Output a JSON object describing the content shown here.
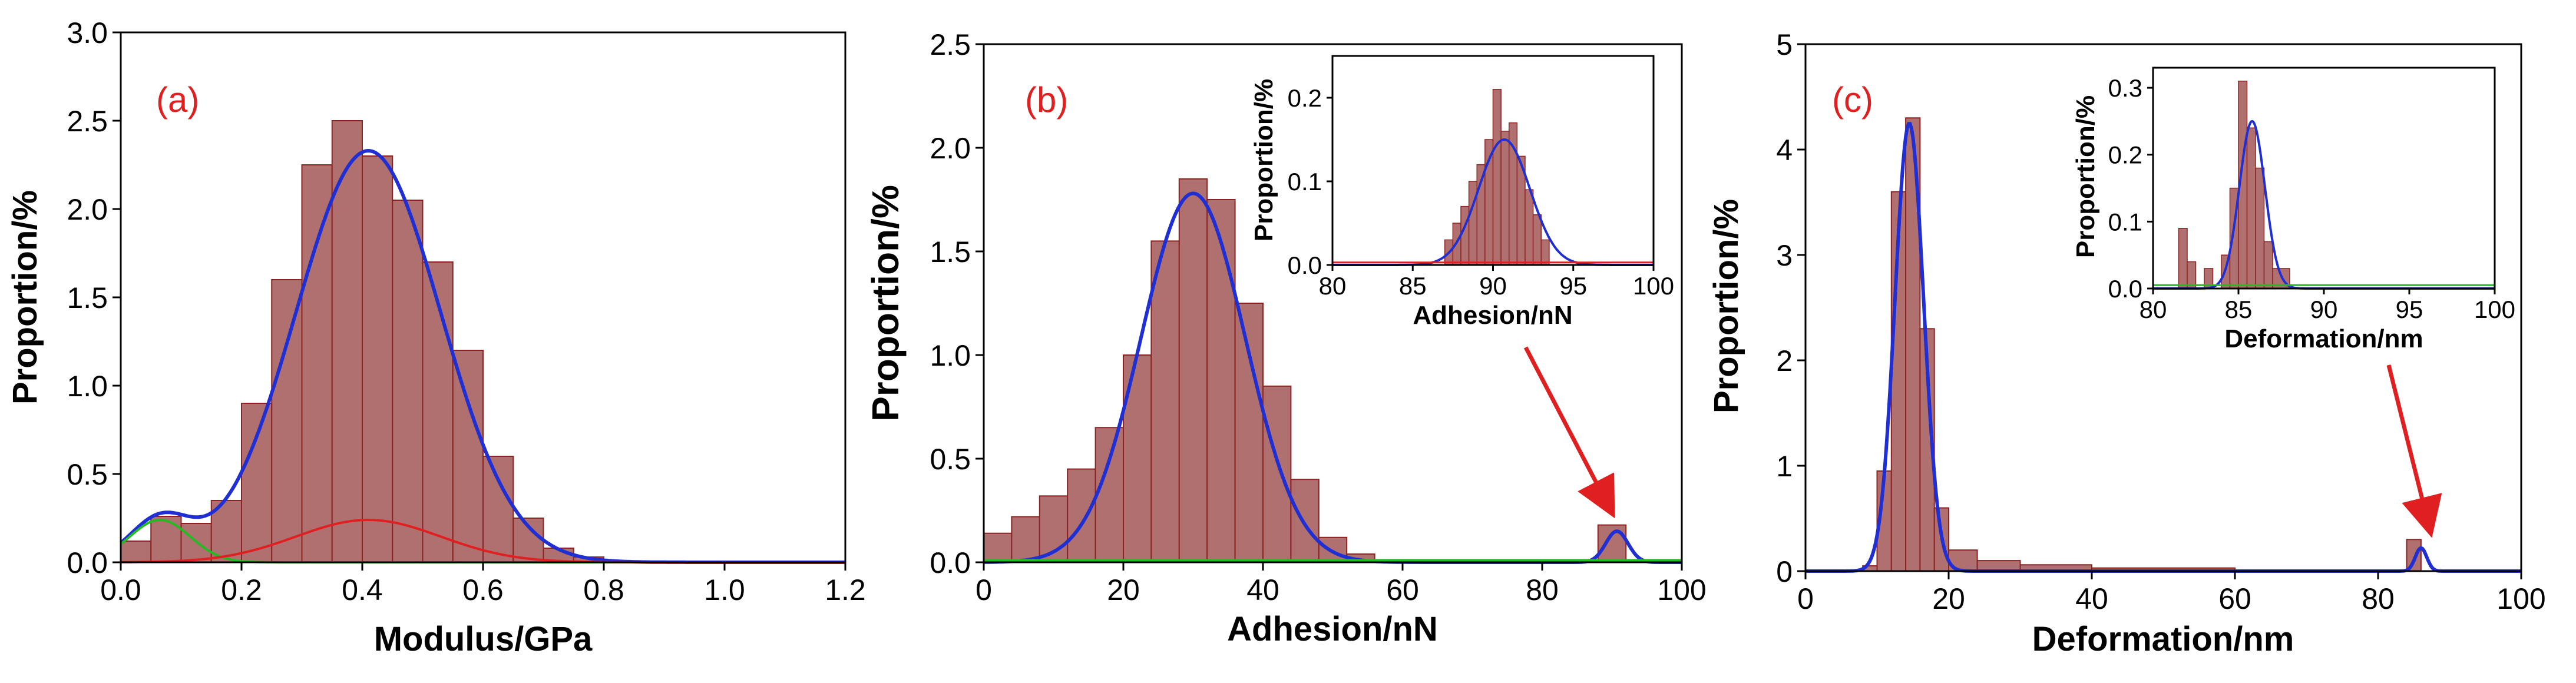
{
  "colors": {
    "bar_fill": "#b07070",
    "bar_stroke": "#8b2323",
    "fit": "#1f2fd4",
    "green": "#22bb22",
    "red": "#e02020",
    "axis": "#000000"
  },
  "chart_data": [
    {
      "id": "a",
      "type": "bar",
      "panel_label": "(a)",
      "xlabel": "Modulus/GPa",
      "ylabel": "Proportion/%",
      "xlim": [
        0,
        1.2
      ],
      "ylim": [
        0,
        3.0
      ],
      "xticks": [
        "0.0",
        "0.2",
        "0.4",
        "0.6",
        "0.8",
        "1.0",
        "1.2"
      ],
      "yticks": [
        "0.0",
        "0.5",
        "1.0",
        "1.5",
        "2.0",
        "2.5",
        "3.0"
      ],
      "hist": [
        {
          "x0": 0.0,
          "x1": 0.05,
          "y": 0.12
        },
        {
          "x0": 0.05,
          "x1": 0.1,
          "y": 0.26
        },
        {
          "x0": 0.1,
          "x1": 0.15,
          "y": 0.22
        },
        {
          "x0": 0.15,
          "x1": 0.2,
          "y": 0.35
        },
        {
          "x0": 0.2,
          "x1": 0.25,
          "y": 0.9
        },
        {
          "x0": 0.25,
          "x1": 0.3,
          "y": 1.6
        },
        {
          "x0": 0.3,
          "x1": 0.35,
          "y": 2.25
        },
        {
          "x0": 0.35,
          "x1": 0.4,
          "y": 2.5
        },
        {
          "x0": 0.4,
          "x1": 0.45,
          "y": 2.3
        },
        {
          "x0": 0.45,
          "x1": 0.5,
          "y": 2.05
        },
        {
          "x0": 0.5,
          "x1": 0.55,
          "y": 1.7
        },
        {
          "x0": 0.55,
          "x1": 0.6,
          "y": 1.2
        },
        {
          "x0": 0.6,
          "x1": 0.65,
          "y": 0.6
        },
        {
          "x0": 0.65,
          "x1": 0.7,
          "y": 0.25
        },
        {
          "x0": 0.7,
          "x1": 0.75,
          "y": 0.08
        },
        {
          "x0": 0.75,
          "x1": 0.8,
          "y": 0.03
        }
      ],
      "fits": [
        {
          "name": "total fit",
          "color": "fit",
          "peaks": [
            {
              "A": 2.33,
              "mu": 0.41,
              "s": 0.12
            },
            {
              "A": 0.24,
              "mu": 0.065,
              "s": 0.05
            }
          ]
        },
        {
          "name": "component 1",
          "color": "green",
          "peaks": [
            {
              "A": 0.24,
              "mu": 0.065,
              "s": 0.05
            }
          ]
        },
        {
          "name": "component 2",
          "color": "red",
          "peaks": [
            {
              "A": 0.24,
              "mu": 0.41,
              "s": 0.12
            }
          ]
        }
      ]
    },
    {
      "id": "b",
      "type": "bar",
      "panel_label": "(b)",
      "xlabel": "Adhesion/nN",
      "ylabel": "Proportion/%",
      "xlim": [
        0,
        100
      ],
      "ylim": [
        0,
        2.5
      ],
      "xticks": [
        "0",
        "20",
        "40",
        "60",
        "80",
        "100"
      ],
      "yticks": [
        "0.0",
        "0.5",
        "1.0",
        "1.5",
        "2.0",
        "2.5"
      ],
      "hist": [
        {
          "x0": 0,
          "x1": 4,
          "y": 0.14
        },
        {
          "x0": 4,
          "x1": 8,
          "y": 0.22
        },
        {
          "x0": 8,
          "x1": 12,
          "y": 0.32
        },
        {
          "x0": 12,
          "x1": 16,
          "y": 0.45
        },
        {
          "x0": 16,
          "x1": 20,
          "y": 0.65
        },
        {
          "x0": 20,
          "x1": 24,
          "y": 1.0
        },
        {
          "x0": 24,
          "x1": 28,
          "y": 1.55
        },
        {
          "x0": 28,
          "x1": 32,
          "y": 1.85
        },
        {
          "x0": 32,
          "x1": 36,
          "y": 1.75
        },
        {
          "x0": 36,
          "x1": 40,
          "y": 1.25
        },
        {
          "x0": 40,
          "x1": 44,
          "y": 0.85
        },
        {
          "x0": 44,
          "x1": 48,
          "y": 0.4
        },
        {
          "x0": 48,
          "x1": 52,
          "y": 0.12
        },
        {
          "x0": 52,
          "x1": 56,
          "y": 0.04
        },
        {
          "x0": 88,
          "x1": 92,
          "y": 0.18
        }
      ],
      "fits": [
        {
          "name": "total fit",
          "color": "fit",
          "peaks": [
            {
              "A": 1.78,
              "mu": 30,
              "s": 7.5
            },
            {
              "A": 0.15,
              "mu": 90.7,
              "s": 1.6
            }
          ]
        },
        {
          "name": "baseline",
          "color": "green",
          "peaks": [
            {
              "A": 0.01,
              "mu": 50,
              "s": 300
            }
          ]
        }
      ],
      "inset": {
        "xlabel": "Adhesion/nN",
        "ylabel": "Proportion/%",
        "xlim": [
          80,
          100
        ],
        "ylim": [
          0,
          0.25
        ],
        "xticks": [
          "80",
          "85",
          "90",
          "95",
          "100"
        ],
        "yticks": [
          "0.0",
          "0.1",
          "0.2"
        ],
        "hist": [
          {
            "x0": 87.0,
            "x1": 87.5,
            "y": 0.03
          },
          {
            "x0": 87.5,
            "x1": 88.0,
            "y": 0.05
          },
          {
            "x0": 88.0,
            "x1": 88.5,
            "y": 0.07
          },
          {
            "x0": 88.5,
            "x1": 89.0,
            "y": 0.1
          },
          {
            "x0": 89.0,
            "x1": 89.5,
            "y": 0.12
          },
          {
            "x0": 89.5,
            "x1": 90.0,
            "y": 0.15
          },
          {
            "x0": 90.0,
            "x1": 90.5,
            "y": 0.21
          },
          {
            "x0": 90.5,
            "x1": 91.0,
            "y": 0.16
          },
          {
            "x0": 91.0,
            "x1": 91.5,
            "y": 0.17
          },
          {
            "x0": 91.5,
            "x1": 92.0,
            "y": 0.13
          },
          {
            "x0": 92.0,
            "x1": 92.5,
            "y": 0.09
          },
          {
            "x0": 92.5,
            "x1": 93.0,
            "y": 0.06
          },
          {
            "x0": 93.0,
            "x1": 93.5,
            "y": 0.03
          }
        ],
        "fits": [
          {
            "name": "inset fit",
            "color": "fit",
            "peaks": [
              {
                "A": 0.15,
                "mu": 90.7,
                "s": 1.6
              }
            ]
          },
          {
            "name": "baseline",
            "color": "red",
            "peaks": [
              {
                "A": 0.003,
                "mu": 90,
                "s": 200
              }
            ]
          }
        ]
      }
    },
    {
      "id": "c",
      "type": "bar",
      "panel_label": "(c)",
      "xlabel": "Deformation/nm",
      "ylabel": "Proportion/%",
      "xlim": [
        0,
        100
      ],
      "ylim": [
        0,
        5
      ],
      "xticks": [
        "0",
        "20",
        "40",
        "60",
        "80",
        "100"
      ],
      "yticks": [
        "0",
        "1",
        "2",
        "3",
        "4",
        "5"
      ],
      "hist": [
        {
          "x0": 8,
          "x1": 10,
          "y": 0.05
        },
        {
          "x0": 10,
          "x1": 12,
          "y": 0.95
        },
        {
          "x0": 12,
          "x1": 14,
          "y": 3.6
        },
        {
          "x0": 14,
          "x1": 16,
          "y": 4.3
        },
        {
          "x0": 16,
          "x1": 18,
          "y": 2.3
        },
        {
          "x0": 18,
          "x1": 20,
          "y": 0.6
        },
        {
          "x0": 20,
          "x1": 24,
          "y": 0.2
        },
        {
          "x0": 24,
          "x1": 30,
          "y": 0.1
        },
        {
          "x0": 30,
          "x1": 40,
          "y": 0.06
        },
        {
          "x0": 40,
          "x1": 60,
          "y": 0.03
        },
        {
          "x0": 84,
          "x1": 86,
          "y": 0.3
        }
      ],
      "fits": [
        {
          "name": "total fit",
          "color": "fit",
          "peaks": [
            {
              "A": 4.25,
              "mu": 14.5,
              "s": 2.0
            },
            {
              "A": 0.22,
              "mu": 86,
              "s": 0.8
            }
          ]
        }
      ],
      "inset": {
        "xlabel": "Deformation/nm",
        "ylabel": "Proportion/%",
        "xlim": [
          80,
          100
        ],
        "ylim": [
          0,
          0.33
        ],
        "xticks": [
          "80",
          "85",
          "90",
          "95",
          "100"
        ],
        "yticks": [
          "0.0",
          "0.1",
          "0.2",
          "0.3"
        ],
        "hist": [
          {
            "x0": 81.5,
            "x1": 82.0,
            "y": 0.09
          },
          {
            "x0": 82.0,
            "x1": 82.5,
            "y": 0.04
          },
          {
            "x0": 83.0,
            "x1": 83.5,
            "y": 0.03
          },
          {
            "x0": 84.0,
            "x1": 84.5,
            "y": 0.05
          },
          {
            "x0": 84.5,
            "x1": 85.0,
            "y": 0.15
          },
          {
            "x0": 85.0,
            "x1": 85.5,
            "y": 0.31
          },
          {
            "x0": 85.5,
            "x1": 86.0,
            "y": 0.24
          },
          {
            "x0": 86.0,
            "x1": 86.5,
            "y": 0.18
          },
          {
            "x0": 86.5,
            "x1": 87.0,
            "y": 0.07
          },
          {
            "x0": 87.0,
            "x1": 88.0,
            "y": 0.03
          }
        ],
        "fits": [
          {
            "name": "inset fit",
            "color": "fit",
            "peaks": [
              {
                "A": 0.25,
                "mu": 85.8,
                "s": 0.75
              }
            ]
          },
          {
            "name": "baseline",
            "color": "green",
            "peaks": [
              {
                "A": 0.005,
                "mu": 88,
                "s": 200
              }
            ]
          }
        ]
      }
    }
  ]
}
